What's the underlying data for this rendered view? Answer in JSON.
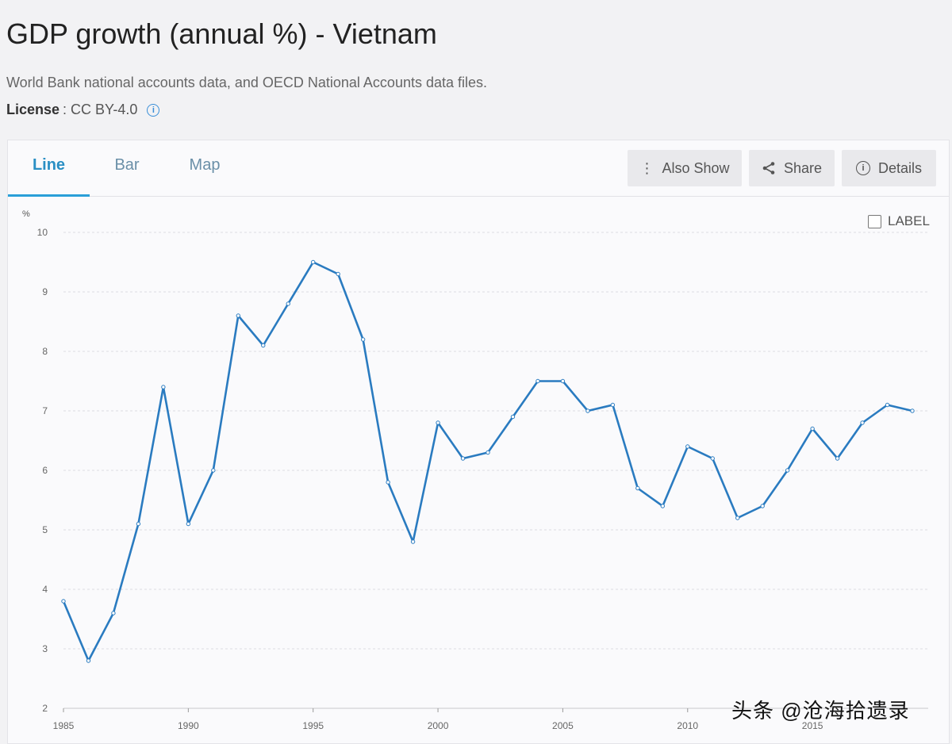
{
  "header": {
    "title": "GDP growth (annual %) - Vietnam",
    "source": "World Bank national accounts data, and OECD National Accounts data files.",
    "license_label": "License",
    "license_value": ": CC BY-4.0"
  },
  "tabs": [
    {
      "label": "Line",
      "active": true
    },
    {
      "label": "Bar",
      "active": false
    },
    {
      "label": "Map",
      "active": false
    }
  ],
  "toolbar": {
    "also_show": "Also Show",
    "share": "Share",
    "details": "Details"
  },
  "label_toggle": "LABEL",
  "watermark": "头条 @沧海拾遗录",
  "colors": {
    "line": "#2a7bc0",
    "accent": "#2a9fd8"
  },
  "chart_data": {
    "type": "line",
    "ylabel": "%",
    "ylim": [
      2,
      10
    ],
    "yticks": [
      2,
      3,
      4,
      5,
      6,
      7,
      8,
      9,
      10
    ],
    "xlim": [
      1985,
      2019
    ],
    "xticks": [
      1985,
      1990,
      1995,
      2000,
      2005,
      2010,
      2015
    ],
    "grid": true,
    "series": [
      {
        "x": [
          1985,
          1986,
          1987,
          1988,
          1989,
          1990,
          1991,
          1992,
          1993,
          1994,
          1995,
          1996,
          1997,
          1998,
          1999,
          2000,
          2001,
          2002,
          2003,
          2004,
          2005,
          2006,
          2007,
          2008,
          2009,
          2010,
          2011,
          2012,
          2013,
          2014,
          2015,
          2016,
          2017,
          2018,
          2019
        ],
        "values": [
          3.8,
          2.8,
          3.6,
          5.1,
          7.4,
          5.1,
          6.0,
          8.6,
          8.1,
          8.8,
          9.5,
          9.3,
          8.2,
          5.8,
          4.8,
          6.8,
          6.2,
          6.3,
          6.9,
          7.5,
          7.5,
          7.0,
          7.1,
          5.7,
          5.4,
          6.4,
          6.2,
          5.2,
          5.4,
          6.0,
          6.7,
          6.2,
          6.8,
          7.1,
          7.0
        ]
      }
    ]
  }
}
